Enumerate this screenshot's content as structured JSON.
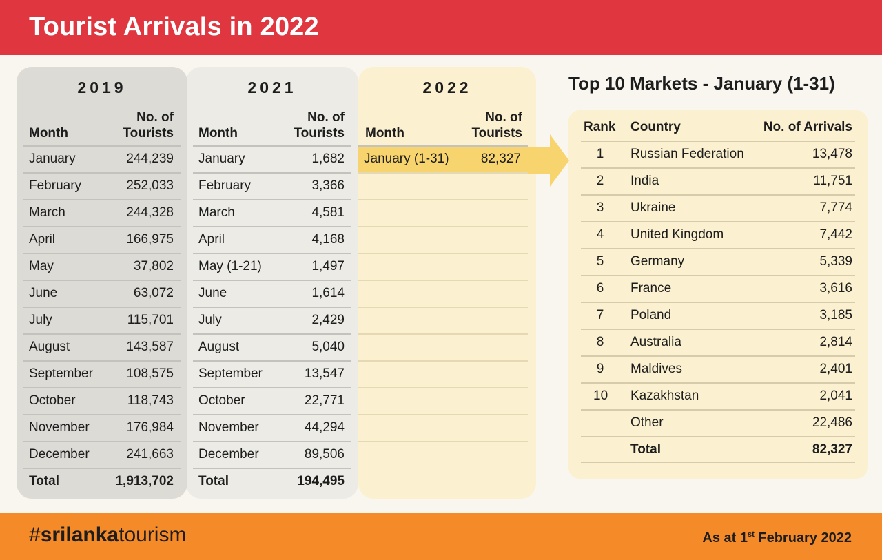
{
  "title": "Tourist Arrivals in 2022",
  "tables": {
    "y2019": {
      "year": "2019",
      "month_header": "Month",
      "count_header_line1": "No. of",
      "count_header_line2": "Tourists",
      "rows": [
        {
          "month": "January",
          "value": "244,239"
        },
        {
          "month": "February",
          "value": "252,033"
        },
        {
          "month": "March",
          "value": "244,328"
        },
        {
          "month": "April",
          "value": "166,975"
        },
        {
          "month": "May",
          "value": "37,802"
        },
        {
          "month": "June",
          "value": "63,072"
        },
        {
          "month": "July",
          "value": "115,701"
        },
        {
          "month": "August",
          "value": "143,587"
        },
        {
          "month": "September",
          "value": "108,575"
        },
        {
          "month": "October",
          "value": "118,743"
        },
        {
          "month": "November",
          "value": "176,984"
        },
        {
          "month": "December",
          "value": "241,663"
        }
      ],
      "total_label": "Total",
      "total_value": "1,913,702"
    },
    "y2021": {
      "year": "2021",
      "month_header": "Month",
      "count_header_line1": "No. of",
      "count_header_line2": "Tourists",
      "rows": [
        {
          "month": "January",
          "value": "1,682"
        },
        {
          "month": "February",
          "value": "3,366"
        },
        {
          "month": "March",
          "value": "4,581"
        },
        {
          "month": "April",
          "value": "4,168"
        },
        {
          "month": "May (1-21)",
          "value": "1,497"
        },
        {
          "month": "June",
          "value": "1,614"
        },
        {
          "month": "July",
          "value": "2,429"
        },
        {
          "month": "August",
          "value": "5,040"
        },
        {
          "month": "September",
          "value": "13,547"
        },
        {
          "month": "October",
          "value": "22,771"
        },
        {
          "month": "November",
          "value": "44,294"
        },
        {
          "month": "December",
          "value": "89,506"
        }
      ],
      "total_label": "Total",
      "total_value": "194,495"
    },
    "y2022": {
      "year": "2022",
      "month_header": "Month",
      "count_header_line1": "No. of",
      "count_header_line2": "Tourists",
      "rows": [
        {
          "month": "January (1-31)",
          "value": "82,327"
        }
      ]
    }
  },
  "markets": {
    "title": "Top 10 Markets - January (1-31)",
    "headers": {
      "rank": "Rank",
      "country": "Country",
      "arrivals": "No. of Arrivals"
    },
    "rows": [
      {
        "rank": "1",
        "country": "Russian Federation",
        "arrivals": "13,478"
      },
      {
        "rank": "2",
        "country": "India",
        "arrivals": "11,751"
      },
      {
        "rank": "3",
        "country": "Ukraine",
        "arrivals": "7,774"
      },
      {
        "rank": "4",
        "country": "United Kingdom",
        "arrivals": "7,442"
      },
      {
        "rank": "5",
        "country": "Germany",
        "arrivals": "5,339"
      },
      {
        "rank": "6",
        "country": "France",
        "arrivals": "3,616"
      },
      {
        "rank": "7",
        "country": "Poland",
        "arrivals": "3,185"
      },
      {
        "rank": "8",
        "country": "Australia",
        "arrivals": "2,814"
      },
      {
        "rank": "9",
        "country": "Maldives",
        "arrivals": "2,401"
      },
      {
        "rank": "10",
        "country": "Kazakhstan",
        "arrivals": "2,041"
      },
      {
        "rank": "",
        "country": "Other",
        "arrivals": "22,486"
      }
    ],
    "total_label": "Total",
    "total_value": "82,327"
  },
  "footer": {
    "hashtag_prefix": "#",
    "hashtag_bold": "srilanka",
    "hashtag_rest": "tourism",
    "as_at_prefix": "As at 1",
    "as_at_sup": "st",
    "as_at_suffix": " February 2022"
  },
  "colors": {
    "header_red": "#e03640",
    "footer_orange": "#f58a28",
    "highlight_yellow": "#f8d46e",
    "panel_cream": "#fbf1d0"
  }
}
